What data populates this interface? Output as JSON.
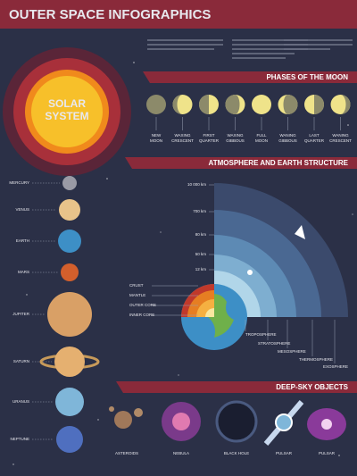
{
  "header": {
    "title": "OUTER SPACE INFOGRAPHICS"
  },
  "solar_system": {
    "label": [
      "SOLAR",
      "SYSTEM"
    ]
  },
  "planets": [
    "MERCURY",
    "VENUS",
    "EARTH",
    "MARS",
    "JUPITER",
    "SATURN",
    "URANUS",
    "NEPTUNE"
  ],
  "moon_phases": {
    "title": "PHASES OF THE MOON",
    "phases": [
      [
        "NEW",
        "MOON"
      ],
      [
        "WAXING",
        "CRESCENT"
      ],
      [
        "FIRST",
        "QUARTER"
      ],
      [
        "WAXING",
        "GIBBOUS"
      ],
      [
        "FULL",
        "MOON"
      ],
      [
        "WANING",
        "GIBBOUS"
      ],
      [
        "LAST",
        "QUARTER"
      ],
      [
        "WANING",
        "CRESCENT"
      ]
    ]
  },
  "atmosphere": {
    "title": "ATMOSPHERE AND EARTH STRUCTURE",
    "altitudes": [
      "10 000 km",
      "700 km",
      "80 km",
      "50 km",
      "12 km"
    ],
    "earth_layers": [
      "CRUST",
      "MANTLE",
      "OUTER CORE",
      "INNER CORE"
    ],
    "layers": [
      "TROPOSPHERE",
      "STRATOSPHERE",
      "MESOSPHERE",
      "THERMOSPHERE",
      "EXOSPHERE"
    ]
  },
  "deep_sky": {
    "title": "DEEP-SKY OBJECTS",
    "objects": [
      "ASTEROIDS",
      "NEBULA",
      "BLACK HOLE",
      "PULSAR",
      "PULSAR"
    ]
  }
}
